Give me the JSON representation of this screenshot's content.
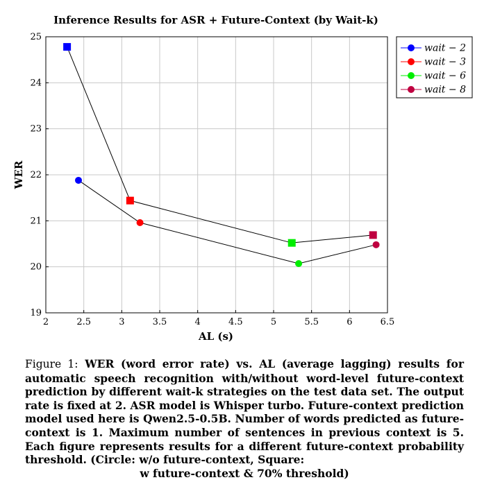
{
  "chart_data": {
    "type": "scatter",
    "title": "Inference Results for ASR + Future-Context (by Wait-k)",
    "xlabel": "AL (s)",
    "ylabel": "WER",
    "xlim": [
      2,
      6.5
    ],
    "ylim": [
      19,
      25
    ],
    "xticks": [
      "2",
      "2.5",
      "3",
      "3.5",
      "4",
      "4.5",
      "5",
      "5.5",
      "6",
      "6.5"
    ],
    "yticks": [
      "19",
      "20",
      "21",
      "22",
      "23",
      "24",
      "25"
    ],
    "grid": true,
    "legend_position": "outside-right-top",
    "legend": [
      {
        "label": "wait − 2",
        "color": "#0000ff"
      },
      {
        "label": "wait − 3",
        "color": "#ff0000"
      },
      {
        "label": "wait − 6",
        "color": "#00ee00"
      },
      {
        "label": "wait − 8",
        "color": "#bf0040"
      }
    ],
    "series": [
      {
        "marker": "circle",
        "points": [
          {
            "x": 2.43,
            "y": 21.88,
            "color": "#0000ff"
          },
          {
            "x": 3.24,
            "y": 20.96,
            "color": "#ff0000"
          },
          {
            "x": 5.33,
            "y": 20.07,
            "color": "#00ee00"
          },
          {
            "x": 6.35,
            "y": 20.48,
            "color": "#bf0040"
          }
        ]
      },
      {
        "marker": "square",
        "points": [
          {
            "x": 2.28,
            "y": 24.78,
            "color": "#0000ff"
          },
          {
            "x": 3.11,
            "y": 21.44,
            "color": "#ff0000"
          },
          {
            "x": 5.24,
            "y": 20.52,
            "color": "#00ee00"
          },
          {
            "x": 6.31,
            "y": 20.69,
            "color": "#bf0040"
          }
        ]
      }
    ]
  },
  "caption": {
    "label": "Figure 1:",
    "body": "WER (word error rate) vs. AL (average lagging) results for automatic speech recognition with/without word-level future-context prediction by different wait-k strategies on the test data set. The output rate is fixed at 2. ASR model is Whisper turbo. Future-context prediction model used here is Qwen2.5-0.5B. Number of words predicted as future-context is 1. Maximum number of sentences in previous context is 5. Each figure represents results for a different future-context probability threshold. (Circle: w/o future-context, Square:",
    "last_line": "w future-context & 70% threshold)"
  }
}
